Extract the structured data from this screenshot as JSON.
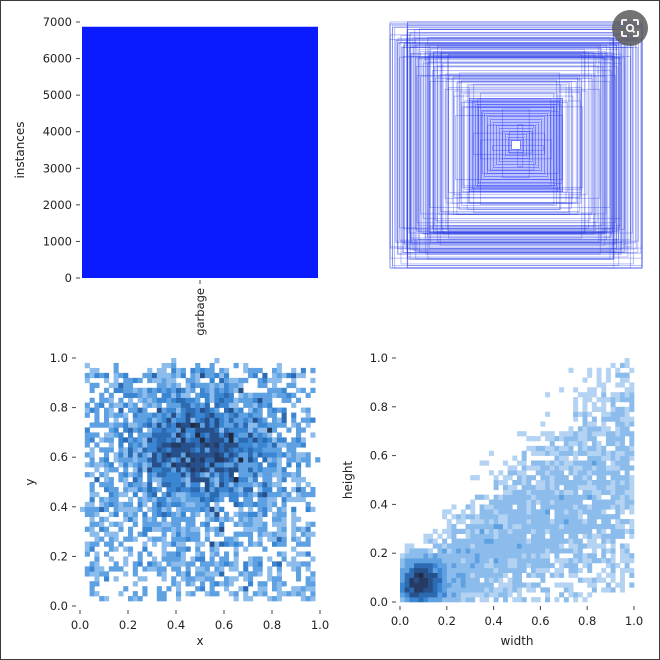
{
  "chart_data": [
    {
      "type": "bar",
      "categories": [
        "garbage"
      ],
      "values": [
        6870
      ],
      "xlabel": "",
      "ylabel": "instances",
      "ylim": [
        0,
        7000
      ],
      "yticks": [
        0,
        1000,
        2000,
        3000,
        4000,
        5000,
        6000,
        7000
      ],
      "color": "#0a1cff",
      "grid": false
    },
    {
      "type": "scatter",
      "subtype": "bounding-box-overlay",
      "description_values": {
        "box_count": 120,
        "center": [
          0.5,
          0.5
        ],
        "width_range": [
          0.02,
          1.0
        ],
        "height_range": [
          0.02,
          1.0
        ]
      },
      "color": "#1a2fe6"
    },
    {
      "type": "heatmap",
      "xlabel": "x",
      "ylabel": "y",
      "xlim": [
        0,
        1
      ],
      "ylim": [
        0,
        1
      ],
      "xticks": [
        0.0,
        0.2,
        0.4,
        0.6,
        0.8,
        1.0
      ],
      "yticks": [
        0.0,
        0.2,
        0.4,
        0.6,
        0.8,
        1.0
      ],
      "bins": 50,
      "color": "#3b8fd9"
    },
    {
      "type": "heatmap",
      "xlabel": "width",
      "ylabel": "height",
      "xlim": [
        0,
        1
      ],
      "ylim": [
        0,
        1
      ],
      "xticks": [
        0.0,
        0.2,
        0.4,
        0.6,
        0.8,
        1.0
      ],
      "yticks": [
        0.0,
        0.2,
        0.4,
        0.6,
        0.8,
        1.0
      ],
      "bins": 50,
      "color": "#3b8fd9"
    }
  ],
  "ui": {
    "lens_icon": "google-lens-icon"
  }
}
